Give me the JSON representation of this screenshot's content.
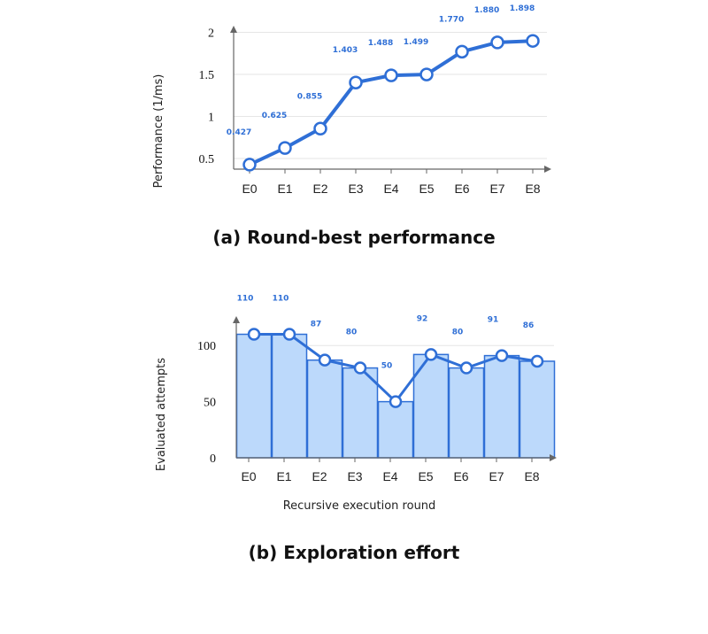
{
  "chart_data": [
    {
      "type": "line",
      "caption": "(a) Round-best performance",
      "xlabel": "",
      "ylabel": "Performance (1/ms)",
      "categories": [
        "E0",
        "E1",
        "E2",
        "E3",
        "E4",
        "E5",
        "E6",
        "E7",
        "E8"
      ],
      "values": [
        0.427,
        0.625,
        0.855,
        1.403,
        1.488,
        1.499,
        1.77,
        1.88,
        1.898
      ],
      "value_labels": [
        "0.427",
        "0.625",
        "0.855",
        "1.403",
        "1.488",
        "1.499",
        "1.770",
        "1.880",
        "1.898"
      ],
      "yticks": [
        0.5,
        1,
        1.5,
        2
      ],
      "ytick_labels": [
        "0.5",
        "1",
        "1.5",
        "2"
      ],
      "ylim": [
        0.35,
        2.05
      ],
      "grid": true,
      "colors": {
        "line": "#2f6fd6",
        "marker_fill": "#ffffff"
      }
    },
    {
      "type": "bar",
      "caption": "(b) Exploration effort",
      "xlabel": "Recursive execution round",
      "ylabel": "Evaluated attempts",
      "categories": [
        "E0",
        "E1",
        "E2",
        "E3",
        "E4",
        "E5",
        "E6",
        "E7",
        "E8"
      ],
      "values": [
        110,
        110,
        87,
        80,
        50,
        92,
        80,
        91,
        86
      ],
      "value_labels": [
        "110",
        "110",
        "87",
        "80",
        "50",
        "92",
        "80",
        "91",
        "86"
      ],
      "overlay_line": true,
      "yticks": [
        0,
        50,
        100
      ],
      "ytick_labels": [
        "0",
        "50",
        "100"
      ],
      "ylim": [
        0,
        115
      ],
      "grid": true,
      "colors": {
        "bar_fill": "#bcd9fb",
        "bar_edge": "#2f6fd6",
        "line": "#2f6fd6",
        "marker_fill": "#ffffff"
      }
    }
  ]
}
